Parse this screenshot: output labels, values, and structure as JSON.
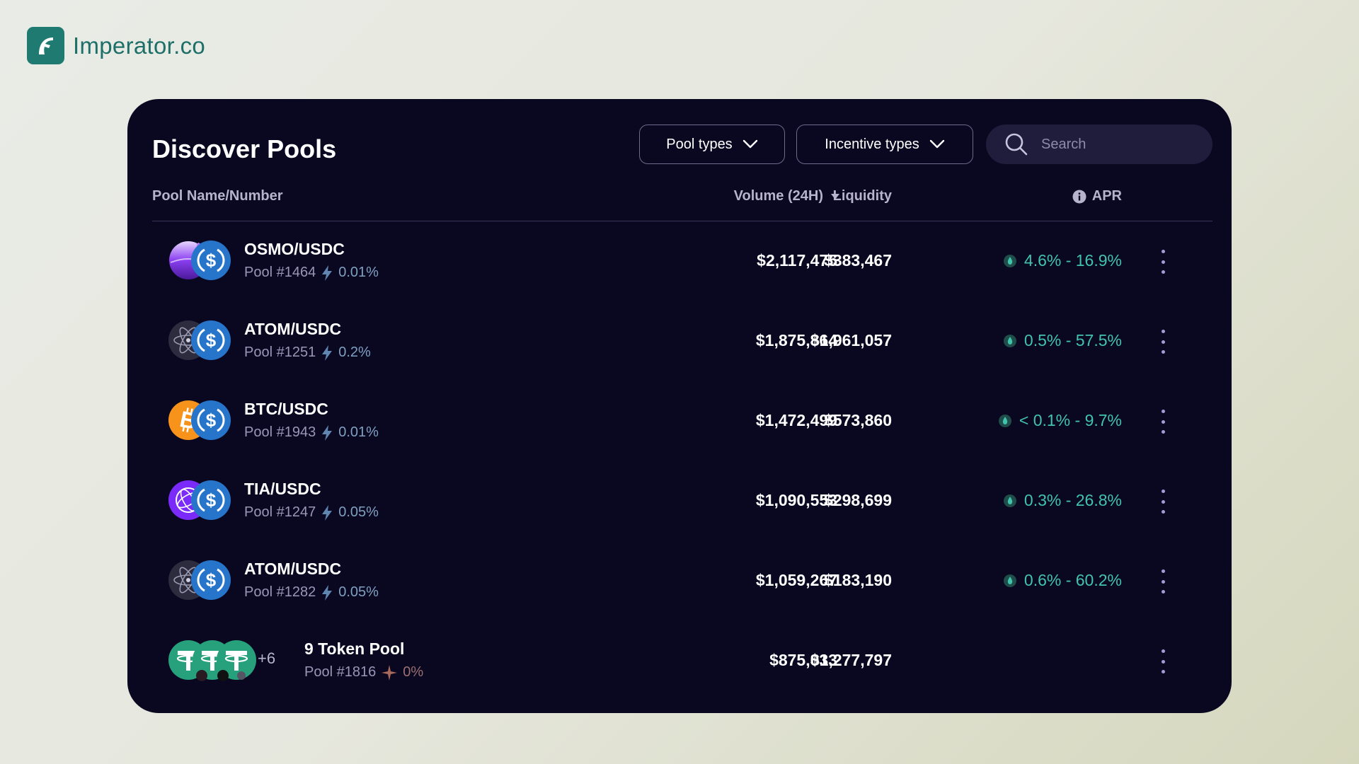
{
  "brand": {
    "name": "Imperator.co",
    "logo_icon": "helmet-icon",
    "color": "#1f7a72"
  },
  "panel": {
    "title": "Discover Pools",
    "filters": {
      "pool_types": "Pool types",
      "incentive_types": "Incentive types"
    },
    "search": {
      "placeholder": "Search"
    },
    "columns": {
      "name": "Pool Name/Number",
      "volume": "Volume (24H)",
      "liquidity": "Liquidity",
      "apr": "APR"
    },
    "rows": [
      {
        "pair": "OSMO/USDC",
        "pool": "Pool #1464",
        "fee": "0.01%",
        "volume": "$2,117,475",
        "liquidity": "$383,467",
        "apr": "4.6% - 16.9%"
      },
      {
        "pair": "ATOM/USDC",
        "pool": "Pool #1251",
        "fee": "0.2%",
        "volume": "$1,875,864",
        "liquidity": "$1,961,057",
        "apr": "0.5% - 57.5%"
      },
      {
        "pair": "BTC/USDC",
        "pool": "Pool #1943",
        "fee": "0.01%",
        "volume": "$1,472,499",
        "liquidity": "$573,860",
        "apr": "< 0.1% - 9.7%"
      },
      {
        "pair": "TIA/USDC",
        "pool": "Pool #1247",
        "fee": "0.05%",
        "volume": "$1,090,553",
        "liquidity": "$298,699",
        "apr": "0.3% - 26.8%"
      },
      {
        "pair": "ATOM/USDC",
        "pool": "Pool #1282",
        "fee": "0.05%",
        "volume": "$1,059,267",
        "liquidity": "$183,190",
        "apr": "0.6% - 60.2%"
      },
      {
        "pair": "9 Token Pool",
        "pool": "Pool #1816",
        "fee": "0%",
        "volume": "$875,033",
        "liquidity": "$1,277,797",
        "extra_tokens": "+6"
      }
    ]
  },
  "colors": {
    "panel_bg": "#0a0721",
    "apr_green": "#41c3ad",
    "usdc_blue": "#2775ca"
  }
}
